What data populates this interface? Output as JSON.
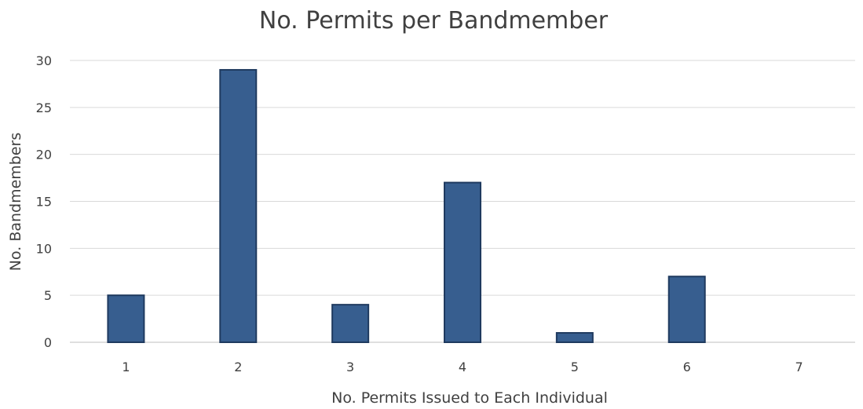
{
  "chart_data": {
    "type": "bar",
    "title": "No. Permits per Bandmember",
    "xlabel": "No. Permits Issued to Each Individual",
    "ylabel": "No. Bandmembers",
    "categories": [
      "1",
      "2",
      "3",
      "4",
      "5",
      "6",
      "7"
    ],
    "values": [
      5,
      29,
      4,
      17,
      1,
      7,
      0
    ],
    "ylim": [
      0,
      30
    ],
    "yticks": [
      0,
      5,
      10,
      15,
      20,
      25,
      30
    ],
    "grid": true,
    "legend": "none",
    "colors": {
      "bar_fill": "#375e8f",
      "bar_stroke": "#1f3a5f"
    }
  }
}
